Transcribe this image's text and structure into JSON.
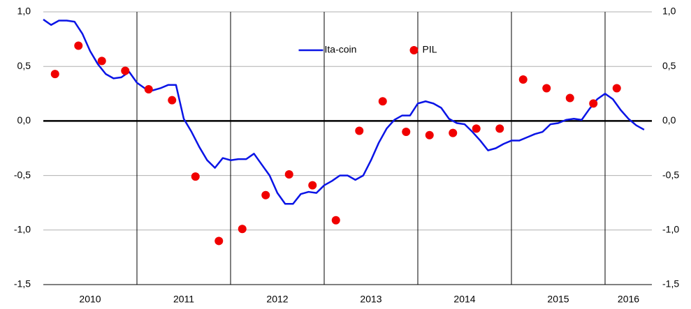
{
  "chart_data": {
    "type": "line",
    "xlim": [
      2010,
      2016.5
    ],
    "ylim": [
      -1.5,
      1.0
    ],
    "xticks": [
      {
        "value": 2010.5,
        "label": "2010"
      },
      {
        "value": 2011.5,
        "label": "2011"
      },
      {
        "value": 2012.5,
        "label": "2012"
      },
      {
        "value": 2013.5,
        "label": "2013"
      },
      {
        "value": 2014.5,
        "label": "2014"
      },
      {
        "value": 2015.5,
        "label": "2015"
      },
      {
        "value": 2016.25,
        "label": "2016"
      }
    ],
    "yticks": [
      {
        "value": 1.0,
        "label": "1,0"
      },
      {
        "value": 0.5,
        "label": "0,5"
      },
      {
        "value": 0.0,
        "label": "0,0"
      },
      {
        "value": -0.5,
        "label": "-0,5"
      },
      {
        "value": -1.0,
        "label": "-1,0"
      },
      {
        "value": -1.5,
        "label": "-1,5"
      }
    ],
    "grid": true,
    "legend": "top center",
    "series": [
      {
        "name": "Ita-coin",
        "type": "line",
        "color": "#0a14e6",
        "x": [
          2010,
          2010.083,
          2010.167,
          2010.25,
          2010.333,
          2010.417,
          2010.5,
          2010.583,
          2010.667,
          2010.75,
          2010.833,
          2010.917,
          2011,
          2011.083,
          2011.167,
          2011.25,
          2011.333,
          2011.417,
          2011.5,
          2011.583,
          2011.667,
          2011.75,
          2011.833,
          2011.917,
          2012,
          2012.083,
          2012.167,
          2012.25,
          2012.333,
          2012.417,
          2012.5,
          2012.583,
          2012.667,
          2012.75,
          2012.833,
          2012.917,
          2013,
          2013.083,
          2013.167,
          2013.25,
          2013.333,
          2013.417,
          2013.5,
          2013.583,
          2013.667,
          2013.75,
          2013.833,
          2013.917,
          2014,
          2014.083,
          2014.167,
          2014.25,
          2014.333,
          2014.417,
          2014.5,
          2014.583,
          2014.667,
          2014.75,
          2014.833,
          2014.917,
          2015,
          2015.083,
          2015.167,
          2015.25,
          2015.333,
          2015.417,
          2015.5,
          2015.583,
          2015.667,
          2015.75,
          2015.833,
          2015.917,
          2016,
          2016.083,
          2016.167,
          2016.25,
          2016.333,
          2016.417
        ],
        "values": [
          0.93,
          0.88,
          0.92,
          0.92,
          0.91,
          0.8,
          0.64,
          0.52,
          0.43,
          0.39,
          0.4,
          0.45,
          0.35,
          0.3,
          0.28,
          0.3,
          0.33,
          0.33,
          0.02,
          -0.1,
          -0.24,
          -0.36,
          -0.43,
          -0.34,
          -0.36,
          -0.35,
          -0.35,
          -0.3,
          -0.4,
          -0.5,
          -0.66,
          -0.76,
          -0.76,
          -0.67,
          -0.65,
          -0.66,
          -0.59,
          -0.55,
          -0.5,
          -0.5,
          -0.54,
          -0.5,
          -0.36,
          -0.2,
          -0.07,
          0.01,
          0.05,
          0.05,
          0.16,
          0.18,
          0.16,
          0.12,
          0.02,
          -0.02,
          -0.03,
          -0.1,
          -0.18,
          -0.27,
          -0.25,
          -0.21,
          -0.18,
          -0.18,
          -0.15,
          -0.12,
          -0.1,
          -0.03,
          -0.02,
          0.01,
          0.02,
          0.01,
          0.11,
          0.2,
          0.25,
          0.2,
          0.1,
          0.02,
          -0.04,
          -0.08
        ]
      },
      {
        "name": "PIL",
        "type": "scatter",
        "color": "#f00000",
        "x": [
          2010.125,
          2010.375,
          2010.625,
          2010.875,
          2011.125,
          2011.375,
          2011.625,
          2011.875,
          2012.125,
          2012.375,
          2012.625,
          2012.875,
          2013.125,
          2013.375,
          2013.625,
          2013.875,
          2014.125,
          2014.375,
          2014.625,
          2014.875,
          2015.125,
          2015.375,
          2015.625,
          2015.875,
          2016.125
        ],
        "values": [
          0.43,
          0.69,
          0.55,
          0.46,
          0.29,
          0.19,
          -0.51,
          -1.1,
          -0.99,
          -0.68,
          -0.49,
          -0.59,
          -0.91,
          -0.09,
          0.18,
          -0.1,
          -0.13,
          -0.11,
          -0.07,
          -0.07,
          0.38,
          0.3,
          0.21,
          0.16,
          0.3
        ]
      }
    ]
  }
}
